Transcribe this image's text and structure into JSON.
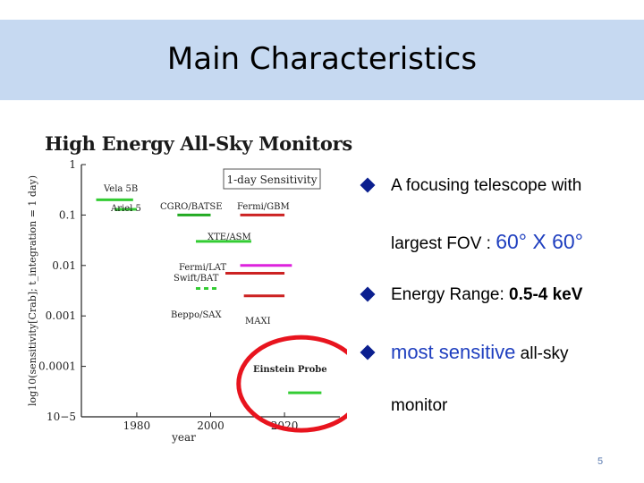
{
  "slide": {
    "title": "Main Characteristics",
    "page_number": "5"
  },
  "bullets": [
    {
      "line1": "A focusing telescope with",
      "line2_prefix": "largest FOV :",
      "line2_value": "60° X 60°"
    },
    {
      "prefix": "Energy Range:",
      "value": "0.5-4 keV"
    },
    {
      "highlight": "most sensitive",
      "rest": "all-sky",
      "line2": "monitor"
    }
  ],
  "chart_data": {
    "type": "scatter",
    "title": "High Energy All-Sky Monitors",
    "legend_box": "1-day Sensitivity",
    "ylabel": "log10(sensitivity[Crab]; t_integration = 1 day)",
    "xlabel": "year",
    "y_scale": "log",
    "ylim": [
      1e-05,
      1
    ],
    "xlim": [
      1965,
      2035
    ],
    "y_tick_labels": [
      "1",
      "0.1",
      "0.01",
      "0.001",
      "0.0001",
      "10−5"
    ],
    "y_tick_values": [
      1,
      0.1,
      0.01,
      0.001,
      0.0001,
      1e-05
    ],
    "x_tick_labels": [
      "1980",
      "2000",
      "2020"
    ],
    "x_tick_values": [
      1980,
      2000,
      2020
    ],
    "missions": [
      {
        "name": "Vela 5B",
        "x_start": 1969,
        "x_end": 1979,
        "y": 0.2,
        "color": "#33cc33",
        "style": "solid"
      },
      {
        "name": "Ariel 5",
        "x_start": 1974,
        "x_end": 1980,
        "y": 0.13,
        "color": "#33cc33",
        "style": "solid"
      },
      {
        "name": "CGRO/BATSE",
        "x_start": 1991,
        "x_end": 2000,
        "y": 0.1,
        "color": "#22aa22",
        "style": "solid"
      },
      {
        "name": "Fermi/GBM",
        "x_start": 2008,
        "x_end": 2020,
        "y": 0.1,
        "color": "#cc2222",
        "style": "solid"
      },
      {
        "name": "XTE/ASM",
        "x_start": 1996,
        "x_end": 2011,
        "y": 0.03,
        "color": "#33cc33",
        "style": "solid"
      },
      {
        "name": "Fermi/LAT",
        "x_start": 2008,
        "x_end": 2022,
        "y": 0.01,
        "color": "#dd22dd",
        "style": "solid"
      },
      {
        "name": "Swift/BAT",
        "x_start": 2004,
        "x_end": 2020,
        "y": 0.007,
        "color": "#cc2222",
        "style": "solid"
      },
      {
        "name": "Beppo/SAX",
        "x_start": 1996,
        "x_end": 2002,
        "y": 0.0035,
        "color": "#33cc33",
        "style": "dashed"
      },
      {
        "name": "MAXI",
        "x_start": 2009,
        "x_end": 2020,
        "y": 0.0025,
        "color": "#cc2222",
        "style": "solid"
      },
      {
        "name": "Einstein Probe",
        "x_start": 2021,
        "x_end": 2030,
        "y": 3e-05,
        "color": "#33cc33",
        "style": "solid"
      }
    ],
    "highlight_ellipse": {
      "target": "Einstein Probe",
      "color": "#e8141e"
    }
  }
}
